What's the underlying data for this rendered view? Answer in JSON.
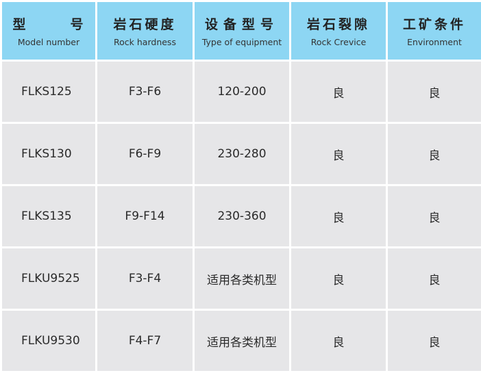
{
  "header": [
    {
      "zh": "型　　　号",
      "en": "Model number"
    },
    {
      "zh": "岩石硬度",
      "en": "Rock hardness"
    },
    {
      "zh": "设备型号",
      "en": "Type of equipment"
    },
    {
      "zh": "岩石裂隙",
      "en": "Rock Crevice"
    },
    {
      "zh": "工矿条件",
      "en": "Environment"
    }
  ],
  "rows": [
    [
      "FLKS125",
      "F3-F6",
      "120-200",
      "良",
      "良"
    ],
    [
      "FLKS130",
      "F6-F9",
      "230-280",
      "良",
      "良"
    ],
    [
      "FLKS135",
      "F9-F14",
      "230-360",
      "良",
      "良"
    ],
    [
      "FLKU9525",
      "F3-F4",
      "适用各类机型",
      "良",
      "良"
    ],
    [
      "FLKU9530",
      "F4-F7",
      "适用各类机型",
      "良",
      "良"
    ]
  ],
  "colors": {
    "header_bg": "#8dd6f3",
    "cell_bg": "#e6e6e8"
  }
}
